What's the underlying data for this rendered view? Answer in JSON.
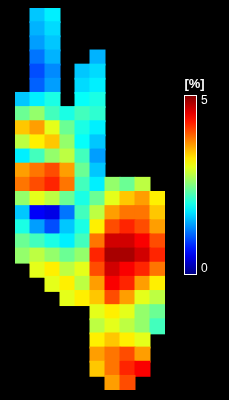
{
  "chart_data": {
    "type": "heatmap",
    "tick_labels": false,
    "cells": [
      [
        null,
        1.6,
        1.8,
        null,
        null,
        null,
        null,
        null,
        null,
        null
      ],
      [
        null,
        1.5,
        1.7,
        null,
        null,
        null,
        null,
        null,
        null,
        null
      ],
      [
        null,
        1.4,
        1.6,
        null,
        null,
        null,
        null,
        null,
        null,
        null
      ],
      [
        null,
        1.2,
        1.5,
        null,
        null,
        1.5,
        null,
        null,
        null,
        null
      ],
      [
        null,
        1.0,
        1.3,
        null,
        1.6,
        1.7,
        null,
        null,
        null,
        null
      ],
      [
        null,
        1.1,
        1.4,
        null,
        1.7,
        1.8,
        null,
        null,
        null,
        null
      ],
      [
        1.6,
        1.8,
        2.0,
        null,
        1.9,
        2.0,
        null,
        null,
        null,
        null
      ],
      [
        2.4,
        2.6,
        2.2,
        2.0,
        2.2,
        2.1,
        null,
        null,
        null,
        null
      ],
      [
        3.4,
        3.6,
        3.0,
        2.4,
        2.0,
        1.8,
        null,
        null,
        null,
        null
      ],
      [
        2.8,
        3.2,
        3.4,
        2.6,
        1.9,
        1.6,
        null,
        null,
        null,
        null
      ],
      [
        1.8,
        2.2,
        2.6,
        2.8,
        2.2,
        1.4,
        null,
        null,
        null,
        null
      ],
      [
        3.6,
        3.8,
        4.0,
        3.6,
        2.4,
        1.6,
        null,
        null,
        null,
        null
      ],
      [
        3.8,
        4.0,
        4.2,
        3.8,
        2.2,
        1.8,
        2.6,
        2.4,
        2.8,
        null
      ],
      [
        2.6,
        3.0,
        2.8,
        2.4,
        2.0,
        2.4,
        3.0,
        3.4,
        3.6,
        3.2
      ],
      [
        1.6,
        0.6,
        0.5,
        1.2,
        2.2,
        2.8,
        3.6,
        3.8,
        3.8,
        3.4
      ],
      [
        2.0,
        1.4,
        1.0,
        1.6,
        2.0,
        3.2,
        4.0,
        4.2,
        4.0,
        3.6
      ],
      [
        2.4,
        2.2,
        2.0,
        1.8,
        2.2,
        3.8,
        4.6,
        4.6,
        4.4,
        4.0
      ],
      [
        2.6,
        2.8,
        2.6,
        2.4,
        2.6,
        4.2,
        4.8,
        4.8,
        4.6,
        4.2
      ],
      [
        null,
        3.0,
        3.2,
        2.8,
        3.0,
        4.0,
        4.6,
        4.4,
        4.2,
        3.8
      ],
      [
        null,
        null,
        3.0,
        3.2,
        2.8,
        3.6,
        4.4,
        4.2,
        3.6,
        3.2
      ],
      [
        null,
        null,
        null,
        3.0,
        3.2,
        3.4,
        4.0,
        3.6,
        3.0,
        2.8
      ],
      [
        null,
        null,
        null,
        null,
        null,
        3.0,
        3.2,
        3.0,
        2.6,
        2.4
      ],
      [
        null,
        null,
        null,
        null,
        null,
        2.8,
        3.0,
        2.8,
        2.6,
        2.2
      ],
      [
        null,
        null,
        null,
        null,
        null,
        3.2,
        3.4,
        3.2,
        3.0,
        null
      ],
      [
        null,
        null,
        null,
        null,
        null,
        3.6,
        3.8,
        4.0,
        3.6,
        null
      ],
      [
        null,
        null,
        null,
        null,
        null,
        3.4,
        3.8,
        4.2,
        4.4,
        null
      ],
      [
        null,
        null,
        null,
        null,
        null,
        null,
        3.6,
        4.0,
        null,
        null
      ]
    ],
    "colorbar": {
      "label": "[%]",
      "range": [
        0,
        5
      ],
      "ticks": [
        0,
        5
      ]
    }
  }
}
